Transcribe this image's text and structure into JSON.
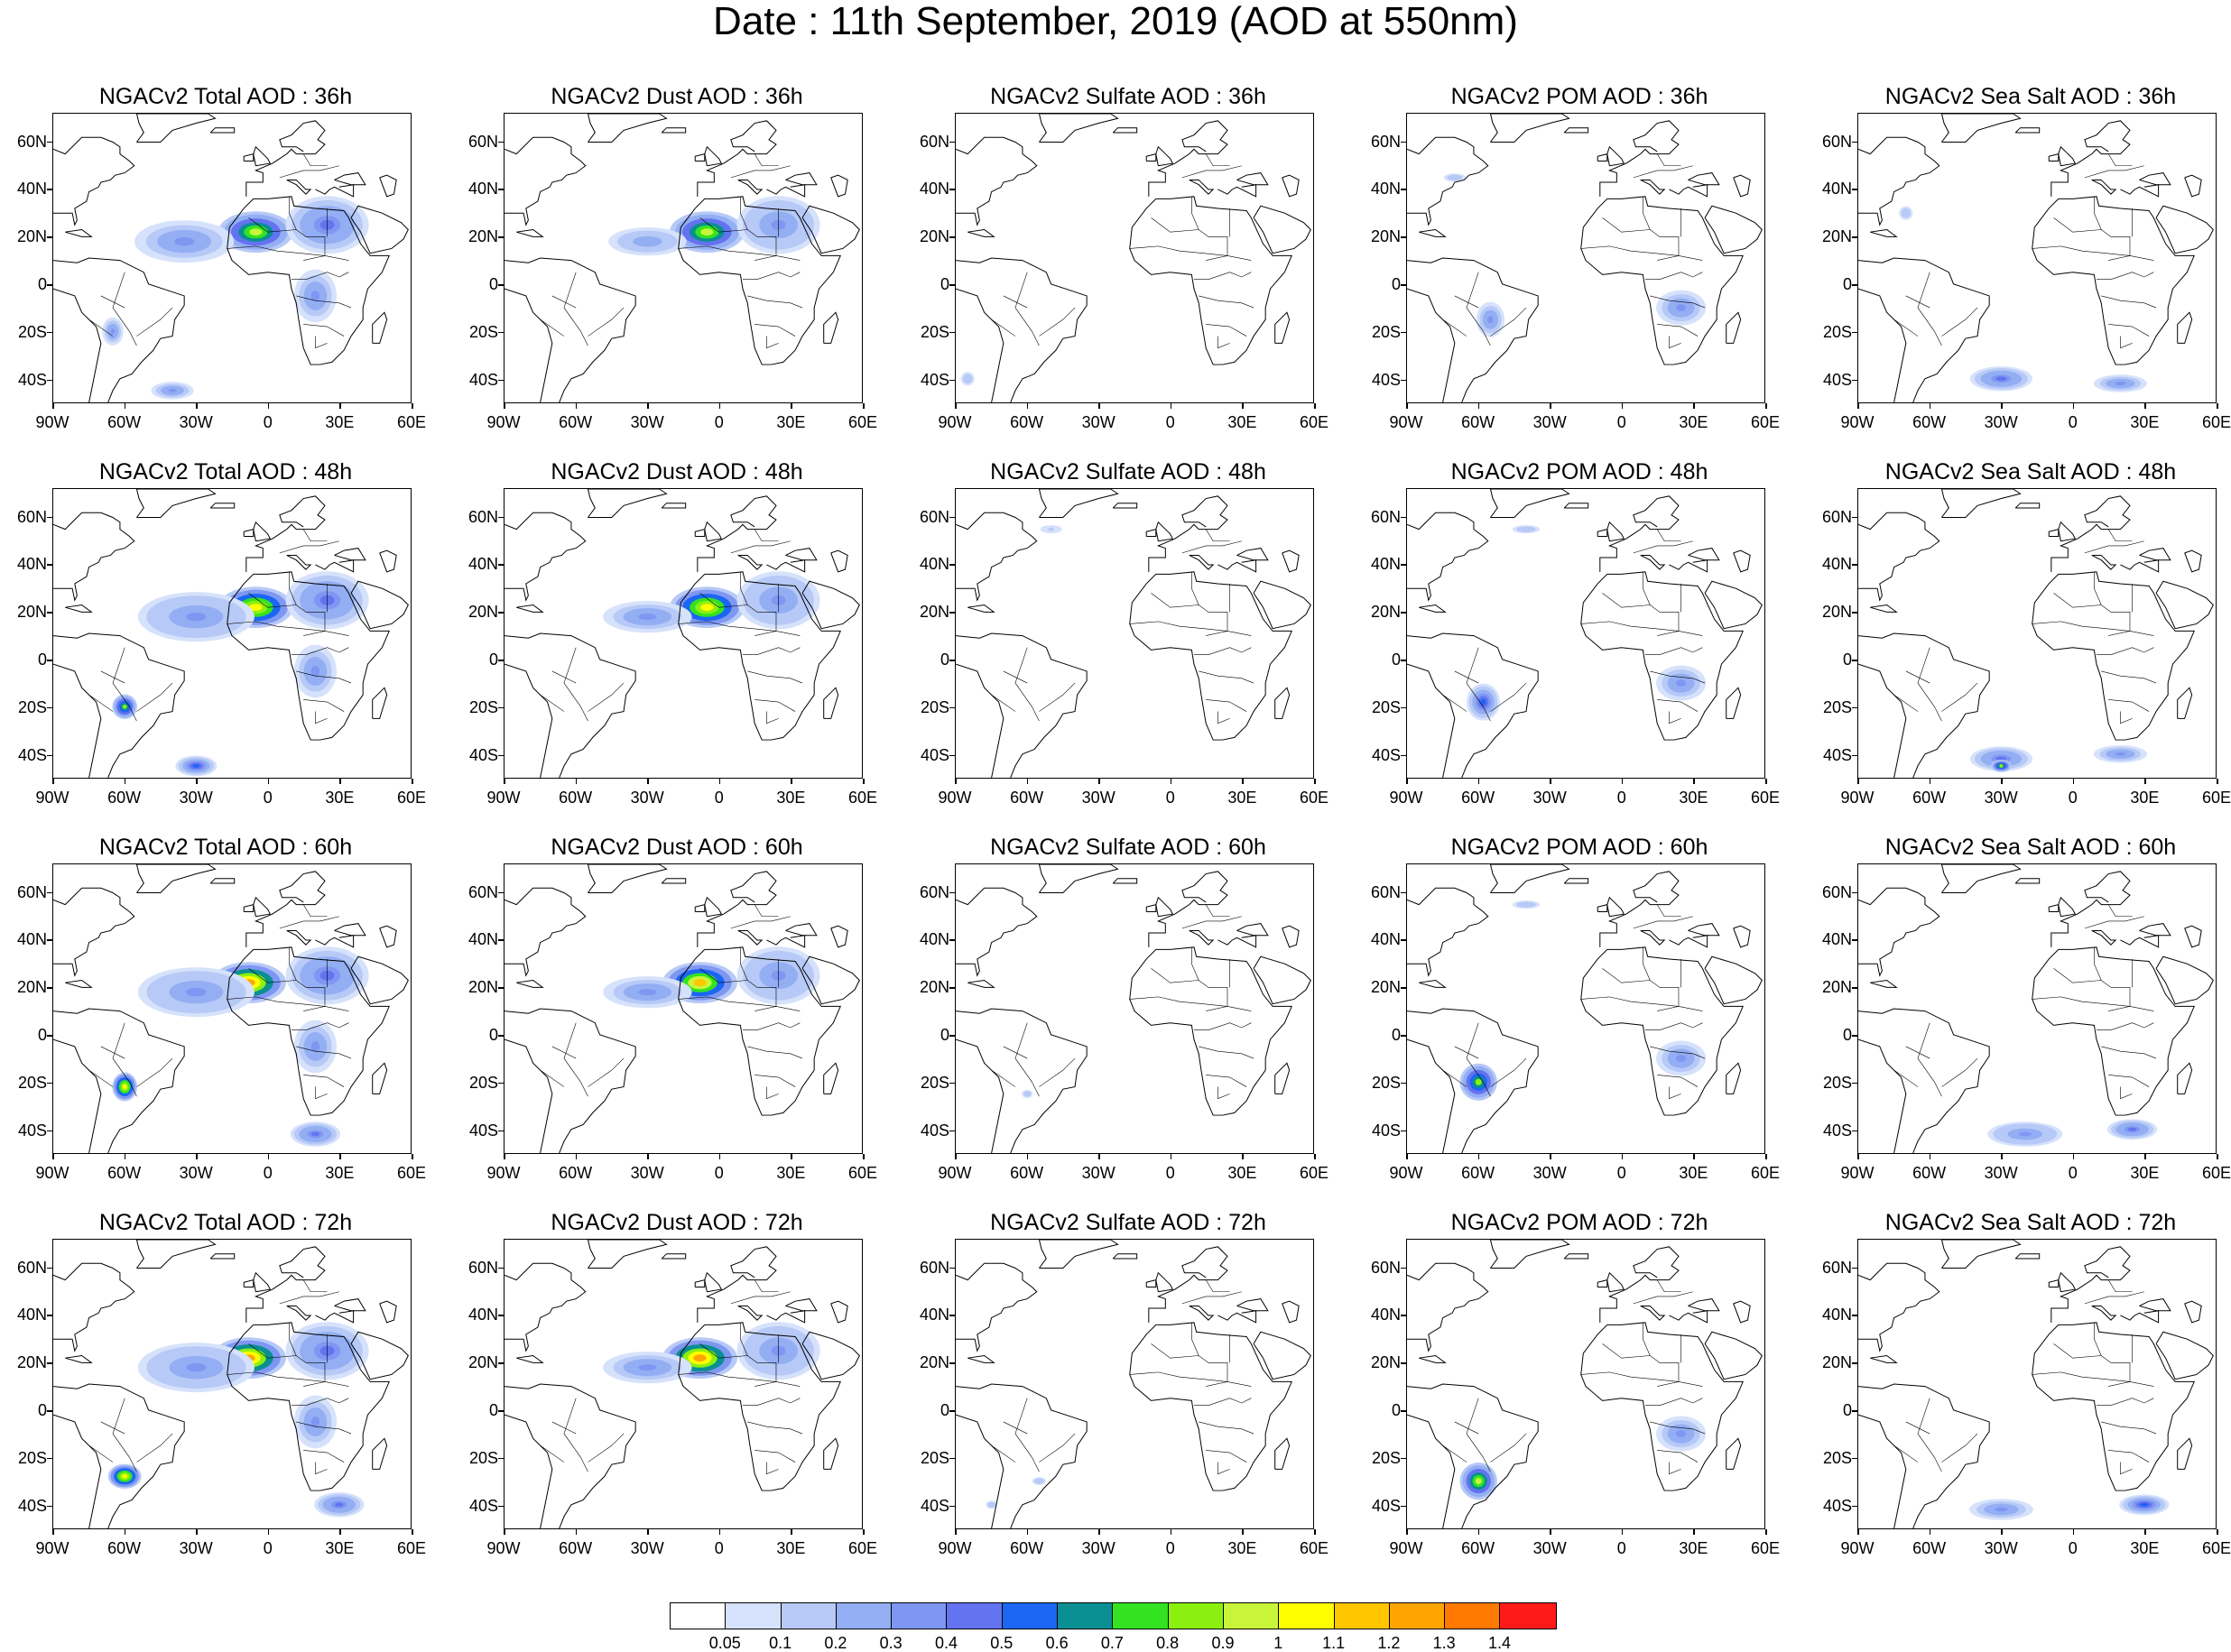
{
  "title": "Date : 11th September, 2019 (AOD at 550nm)",
  "panels": [
    [
      "NGACv2 Total AOD : 36h",
      "NGACv2 Dust AOD : 36h",
      "NGACv2 Sulfate AOD : 36h",
      "NGACv2 POM AOD : 36h",
      "NGACv2 Sea Salt AOD : 36h"
    ],
    [
      "NGACv2 Total AOD : 48h",
      "NGACv2 Dust AOD : 48h",
      "NGACv2 Sulfate AOD : 48h",
      "NGACv2 POM AOD : 48h",
      "NGACv2 Sea Salt AOD : 48h"
    ],
    [
      "NGACv2 Total AOD : 60h",
      "NGACv2 Dust AOD : 60h",
      "NGACv2 Sulfate AOD : 60h",
      "NGACv2 POM AOD : 60h",
      "NGACv2 Sea Salt AOD : 60h"
    ],
    [
      "NGACv2 Total AOD : 72h",
      "NGACv2 Dust AOD : 72h",
      "NGACv2 Sulfate AOD : 72h",
      "NGACv2 POM AOD : 72h",
      "NGACv2 Sea Salt  AOD : 72h"
    ]
  ],
  "lat_labels": [
    "60N",
    "40N",
    "20N",
    "0",
    "20S",
    "40S"
  ],
  "lat_values": [
    60,
    40,
    20,
    0,
    -20,
    -40
  ],
  "lon_labels": [
    "90W",
    "60W",
    "30W",
    "0",
    "30E",
    "60E"
  ],
  "lon_values": [
    -90,
    -60,
    -30,
    0,
    30,
    60
  ],
  "map_extent": {
    "lon": [
      -90,
      60
    ],
    "lat": [
      -50,
      72
    ]
  },
  "colorbar": {
    "labels": [
      "0.05",
      "0.1",
      "0.2",
      "0.3",
      "0.4",
      "0.5",
      "0.6",
      "0.7",
      "0.8",
      "0.9",
      "1",
      "1.1",
      "1.2",
      "1.3",
      "1.4"
    ],
    "colors": [
      "#ffffff",
      "#d6e2fb",
      "#b7c9f6",
      "#93aef3",
      "#7f97f2",
      "#6473f0",
      "#1b66f3",
      "#0a8f93",
      "#33e321",
      "#8bf00f",
      "#c8f53a",
      "#ffff00",
      "#ffc600",
      "#ffa500",
      "#ff7900",
      "#ff1a1a"
    ]
  },
  "chart_data": {
    "type": "heatmap",
    "title": "Date : 11th September, 2019 (AOD at 550nm)",
    "variable": "AOD at 550nm",
    "date": "11th September, 2019",
    "species": [
      "Total",
      "Dust",
      "Sulfate",
      "POM",
      "Sea Salt"
    ],
    "forecast_hours": [
      "36h",
      "48h",
      "60h",
      "72h"
    ],
    "colorbar_levels": [
      0.05,
      0.1,
      0.2,
      0.3,
      0.4,
      0.5,
      0.6,
      0.7,
      0.8,
      0.9,
      1,
      1.1,
      1.2,
      1.3,
      1.4
    ],
    "plumes": {
      "Total": [
        [
          [
            -5,
            22,
            18,
            10,
            0.9
          ],
          [
            -35,
            18,
            28,
            12,
            0.3
          ],
          [
            25,
            25,
            20,
            14,
            0.4
          ],
          [
            20,
            -5,
            12,
            15,
            0.3
          ],
          [
            -40,
            -45,
            12,
            5,
            0.3
          ],
          [
            -65,
            -20,
            6,
            8,
            0.3
          ]
        ],
        [
          [
            -5,
            22,
            18,
            10,
            1.0
          ],
          [
            -30,
            18,
            28,
            12,
            0.35
          ],
          [
            25,
            25,
            20,
            14,
            0.4
          ],
          [
            20,
            -5,
            12,
            15,
            0.3
          ],
          [
            -60,
            -20,
            6,
            6,
            0.8
          ],
          [
            -30,
            -45,
            10,
            5,
            0.5
          ]
        ],
        [
          [
            -8,
            22,
            18,
            10,
            1.2
          ],
          [
            -30,
            18,
            28,
            12,
            0.35
          ],
          [
            25,
            25,
            20,
            14,
            0.4
          ],
          [
            20,
            -5,
            12,
            15,
            0.3
          ],
          [
            -60,
            -22,
            6,
            7,
            1.0
          ],
          [
            20,
            -42,
            12,
            6,
            0.4
          ]
        ],
        [
          [
            -8,
            22,
            18,
            10,
            1.2
          ],
          [
            -30,
            18,
            28,
            12,
            0.35
          ],
          [
            25,
            25,
            20,
            14,
            0.4
          ],
          [
            20,
            -5,
            12,
            15,
            0.3
          ],
          [
            -60,
            -28,
            8,
            6,
            1.0
          ],
          [
            30,
            -40,
            12,
            6,
            0.4
          ]
        ]
      ],
      "Dust": [
        [
          [
            -5,
            22,
            18,
            10,
            0.9
          ],
          [
            -30,
            18,
            22,
            8,
            0.25
          ],
          [
            25,
            25,
            20,
            14,
            0.35
          ]
        ],
        [
          [
            -5,
            22,
            18,
            10,
            1.0
          ],
          [
            -30,
            18,
            25,
            9,
            0.3
          ],
          [
            25,
            25,
            20,
            14,
            0.35
          ]
        ],
        [
          [
            -8,
            22,
            18,
            10,
            1.1
          ],
          [
            -30,
            18,
            25,
            9,
            0.3
          ],
          [
            25,
            25,
            20,
            14,
            0.35
          ]
        ],
        [
          [
            -8,
            22,
            18,
            10,
            1.2
          ],
          [
            -30,
            18,
            25,
            9,
            0.3
          ],
          [
            25,
            25,
            20,
            14,
            0.35
          ]
        ]
      ],
      "Sulfate": [
        [
          [
            -85,
            -40,
            5,
            5,
            0.15
          ]
        ],
        [
          [
            -50,
            55,
            8,
            3,
            0.1
          ]
        ],
        [
          [
            -60,
            -25,
            4,
            3,
            0.15
          ]
        ],
        [
          [
            -55,
            -30,
            5,
            3,
            0.15
          ],
          [
            -75,
            -40,
            4,
            3,
            0.15
          ]
        ]
      ],
      "POM": [
        [
          [
            -55,
            -15,
            8,
            10,
            0.3
          ],
          [
            25,
            -10,
            14,
            10,
            0.3
          ],
          [
            -70,
            45,
            8,
            3,
            0.15
          ]
        ],
        [
          [
            -58,
            -18,
            8,
            9,
            0.5
          ],
          [
            25,
            -10,
            14,
            10,
            0.3
          ],
          [
            -40,
            55,
            10,
            3,
            0.15
          ]
        ],
        [
          [
            -60,
            -20,
            9,
            9,
            0.8
          ],
          [
            25,
            -10,
            14,
            10,
            0.3
          ],
          [
            -40,
            55,
            10,
            3,
            0.15
          ]
        ],
        [
          [
            -60,
            -30,
            9,
            9,
            0.9
          ],
          [
            25,
            -10,
            14,
            10,
            0.3
          ]
        ]
      ],
      "Sea Salt": [
        [
          [
            -30,
            -40,
            15,
            6,
            0.4
          ],
          [
            20,
            -42,
            15,
            5,
            0.3
          ],
          [
            -70,
            30,
            5,
            5,
            0.15
          ]
        ],
        [
          [
            -30,
            -42,
            15,
            6,
            0.4
          ],
          [
            -30,
            -45,
            5,
            3,
            0.8
          ],
          [
            20,
            -40,
            15,
            5,
            0.3
          ]
        ],
        [
          [
            -20,
            -42,
            18,
            6,
            0.35
          ],
          [
            25,
            -40,
            12,
            5,
            0.4
          ]
        ],
        [
          [
            -30,
            -42,
            18,
            6,
            0.3
          ],
          [
            30,
            -40,
            12,
            5,
            0.5
          ]
        ]
      ]
    }
  }
}
